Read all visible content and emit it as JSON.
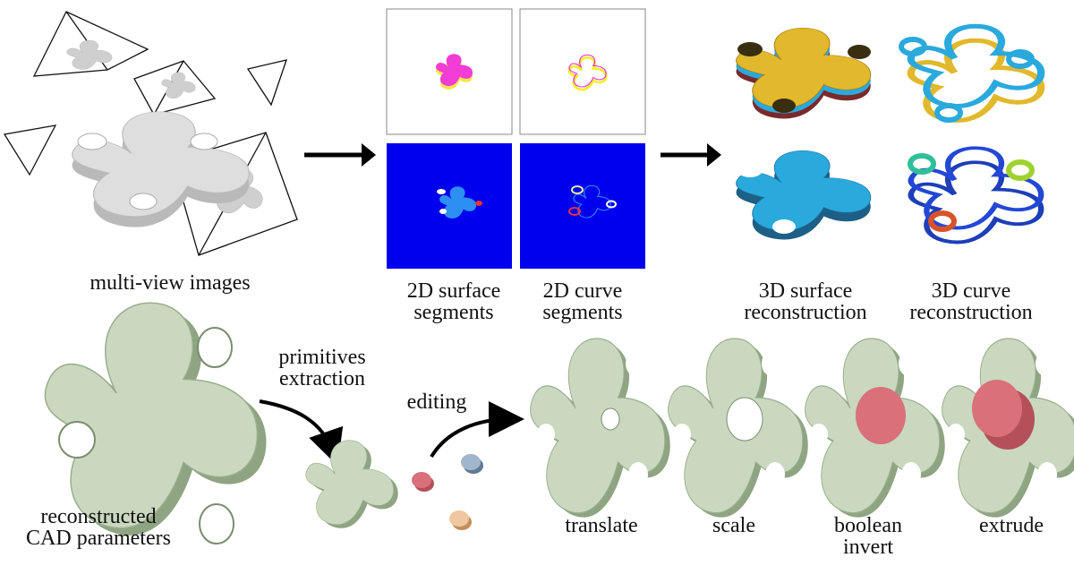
{
  "labels": {
    "multi_view_images": "multi-view images",
    "surface_segments": [
      "2D surface",
      "segments"
    ],
    "curve_segments": [
      "2D curve",
      "segments"
    ],
    "surface_reconstruction": [
      "3D surface",
      "reconstruction"
    ],
    "curve_reconstruction": [
      "3D curve",
      "reconstruction"
    ],
    "primitives_extraction": [
      "primitives",
      "extraction"
    ],
    "editing": "editing",
    "reconstructed_cad": [
      "reconstructed",
      "CAD parameters"
    ],
    "translate": "translate",
    "scale": "scale",
    "boolean_invert": [
      "boolean",
      "invert"
    ],
    "extrude": "extrude"
  },
  "colors": {
    "part_gray": "#d4d4d4",
    "part_green": "#c9d8bf",
    "edit_red": "#d9707a",
    "segment_blue": "#0000ee",
    "surface_gold": "#e2b82c",
    "surface_cyan": "#2aa9dd",
    "segment_magenta": "#f23cd6",
    "segment_yellow": "#f3ef2a"
  }
}
